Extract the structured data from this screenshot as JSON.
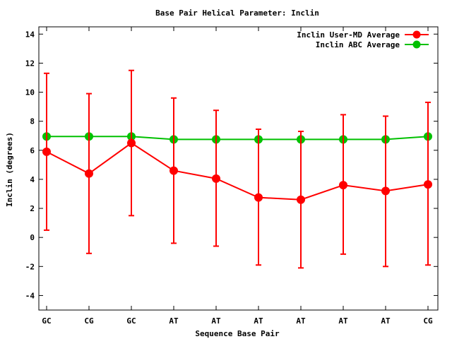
{
  "chart_data": {
    "type": "line",
    "title": "Base Pair Helical Parameter: Inclin",
    "xlabel": "Sequence Base Pair",
    "ylabel": "Inclin (degrees)",
    "categories": [
      "GC",
      "CG",
      "GC",
      "AT",
      "AT",
      "AT",
      "AT",
      "AT",
      "AT",
      "CG"
    ],
    "ylim": [
      -5,
      14.5
    ],
    "yticks": [
      -4,
      -2,
      0,
      2,
      4,
      6,
      8,
      10,
      12,
      14
    ],
    "ytick_labels": [
      "-4",
      "-2",
      "0",
      "2",
      "4",
      "6",
      "8",
      "10",
      "12",
      "14"
    ],
    "grid": false,
    "legend_position": "top-right",
    "series": [
      {
        "name": "Inclin User-MD Average",
        "color": "#ff0000",
        "values": [
          5.9,
          4.4,
          6.5,
          4.6,
          4.05,
          2.75,
          2.6,
          3.6,
          3.2,
          3.65
        ],
        "err_low": [
          0.5,
          -1.1,
          1.5,
          -0.4,
          -0.6,
          -1.9,
          -2.1,
          -1.15,
          -2.0,
          -1.9
        ],
        "err_high": [
          11.3,
          9.9,
          11.5,
          9.6,
          8.75,
          7.45,
          7.3,
          8.45,
          8.35,
          9.3
        ]
      },
      {
        "name": "Inclin ABC Average",
        "color": "#00c000",
        "values": [
          6.95,
          6.95,
          6.95,
          6.75,
          6.75,
          6.75,
          6.75,
          6.75,
          6.75,
          6.95
        ]
      }
    ]
  }
}
